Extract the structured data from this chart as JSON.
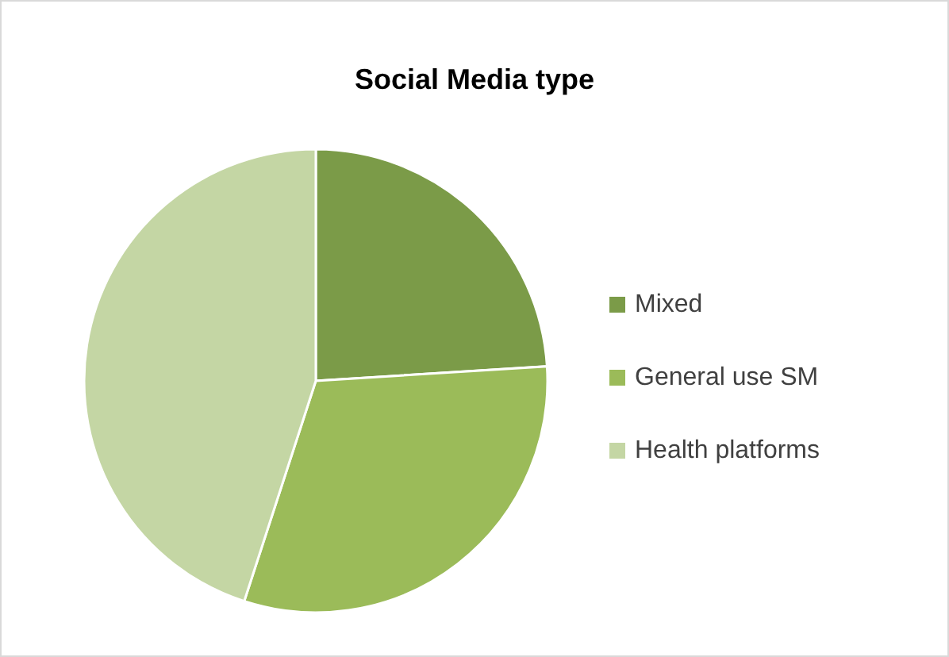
{
  "chart_data": {
    "type": "pie",
    "title": "Social Media type",
    "categories": [
      "Mixed",
      "General use SM",
      "Health platforms"
    ],
    "values": [
      24,
      31,
      45
    ],
    "colors": [
      "#7b9b48",
      "#9bbb59",
      "#c4d6a4"
    ],
    "legend": "right"
  }
}
